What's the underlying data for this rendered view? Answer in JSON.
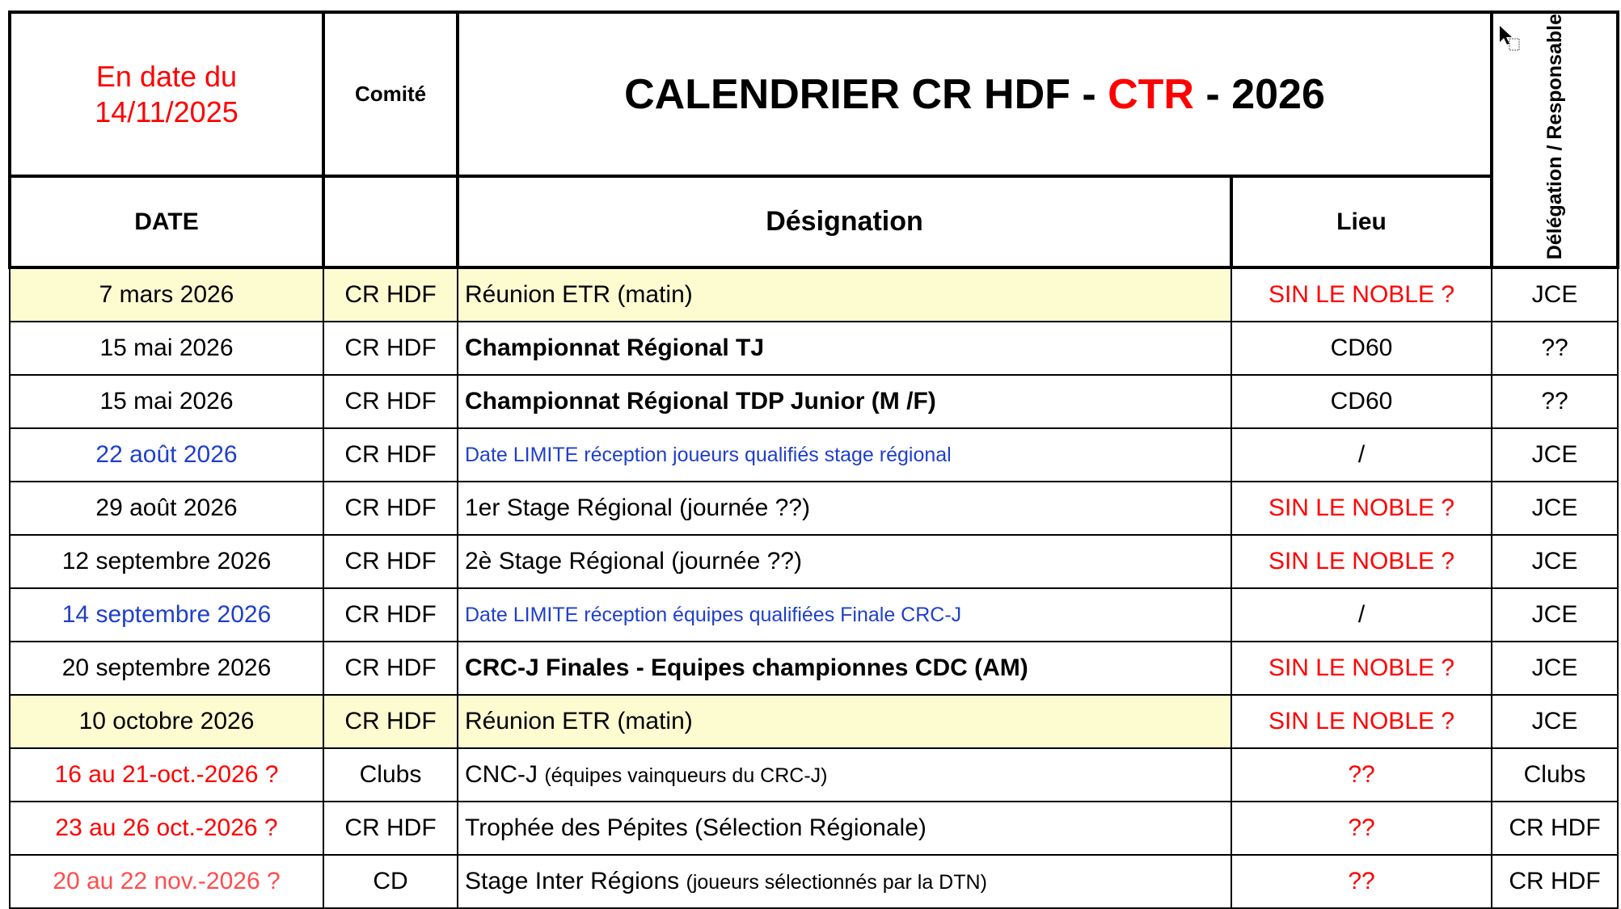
{
  "header": {
    "as_of_line1": "En date du",
    "as_of_line2": "14/11/2025",
    "committee_label": "Comité",
    "title_part1": "CALENDRIER CR HDF - ",
    "title_highlight": "CTR",
    "title_part2": " - 2026",
    "delegation_label": "Délégation / Responsable"
  },
  "columns": {
    "date": "DATE",
    "designation": "Désignation",
    "lieu": "Lieu"
  },
  "rows": [
    {
      "date": "7 mars 2026",
      "comite": "CR HDF",
      "designation": "Réunion ETR (matin)",
      "note": "",
      "lieu": "SIN LE NOBLE ?",
      "resp": "JCE",
      "style": "yellow"
    },
    {
      "date": "15 mai 2026",
      "comite": "CR HDF",
      "designation": "Championnat Régional TJ",
      "note": "",
      "lieu": "CD60",
      "resp": "??",
      "style": "bold"
    },
    {
      "date": "15 mai 2026",
      "comite": "CR HDF",
      "designation": "Championnat Régional TDP Junior (M /F)",
      "note": "",
      "lieu": "CD60",
      "resp": "??",
      "style": "bold"
    },
    {
      "date": "22 août 2026",
      "comite": "CR HDF",
      "designation": "Date LIMITE réception joueurs qualifiés stage régional",
      "note": "",
      "lieu": "/",
      "resp": "JCE",
      "style": "blue"
    },
    {
      "date": "29 août 2026",
      "comite": "CR HDF",
      "designation": "1er Stage Régional (journée ??)",
      "note": "",
      "lieu": "SIN LE NOBLE ?",
      "resp": "JCE",
      "style": ""
    },
    {
      "date": "12 septembre 2026",
      "comite": "CR HDF",
      "designation": "2è Stage Régional (journée ??)",
      "note": "",
      "lieu": "SIN LE NOBLE ?",
      "resp": "JCE",
      "style": ""
    },
    {
      "date": "14 septembre 2026",
      "comite": "CR HDF",
      "designation": "Date LIMITE réception équipes qualifiées Finale CRC-J",
      "note": "",
      "lieu": "/",
      "resp": "JCE",
      "style": "blue"
    },
    {
      "date": "20 septembre 2026",
      "comite": "CR HDF",
      "designation": "CRC-J Finales - Equipes championnes CDC (AM)",
      "note": "",
      "lieu": "SIN LE NOBLE ?",
      "resp": "JCE",
      "style": "bold"
    },
    {
      "date": "10 octobre 2026",
      "comite": "CR HDF",
      "designation": "Réunion ETR (matin)",
      "note": "",
      "lieu": "SIN LE NOBLE ?",
      "resp": "JCE",
      "style": "yellow"
    },
    {
      "date": "16 au 21-oct.-2026 ?",
      "comite": "Clubs",
      "designation": "CNC-J ",
      "note": "(équipes vainqueurs du CRC-J)",
      "lieu": "??",
      "resp": "Clubs",
      "style": "reddate"
    },
    {
      "date": "23 au 26 oct.-2026 ?",
      "comite": "CR HDF",
      "designation": "Trophée des Pépites (Sélection Régionale)",
      "note": "",
      "lieu": "??",
      "resp": "CR HDF",
      "style": "reddate"
    },
    {
      "date": "20 au 22 nov.-2026 ?",
      "comite": "CD",
      "designation": "Stage Inter Régions ",
      "note": "(joueurs sélectionnés par la DTN)",
      "lieu": "??",
      "resp": "CR HDF",
      "style": "pinkdate"
    }
  ],
  "colors": {
    "red": "#ff0000",
    "blue": "#1f3fcc",
    "highlight": "#fdfbd0"
  }
}
